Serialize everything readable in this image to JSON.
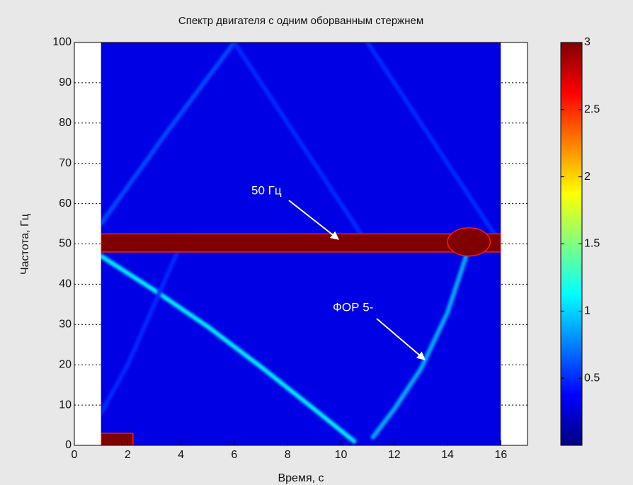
{
  "chart_data": {
    "type": "heatmap",
    "title": "Спектр двигателя с одним оборванным стержнем",
    "xlabel": "Время, с",
    "ylabel": "Частота, Гц",
    "xlim": [
      0,
      17
    ],
    "xticks": [
      0,
      2,
      4,
      6,
      8,
      10,
      12,
      14,
      16
    ],
    "ylim": [
      0,
      100
    ],
    "yticks": [
      0,
      10,
      20,
      30,
      40,
      50,
      60,
      70,
      80,
      90,
      100
    ],
    "image_x": [
      1,
      16
    ],
    "image_y": [
      0,
      100
    ],
    "colormap": "jet",
    "clim": [
      0,
      3
    ],
    "cticks": [
      0.5,
      1,
      1.5,
      2,
      2.5,
      3
    ],
    "background": 0.3,
    "regions": [
      {
        "x": [
          1,
          16
        ],
        "y": [
          48,
          52.5
        ],
        "value": 3
      },
      {
        "x": [
          1,
          2.2
        ],
        "y": [
          0,
          3
        ],
        "value": 3
      },
      {
        "x": [
          14,
          15.6
        ],
        "y": [
          47,
          54
        ],
        "value": 3
      }
    ],
    "curves": [
      {
        "x": [
          1,
          3,
          5,
          7,
          9,
          10.5
        ],
        "y": [
          47,
          38.5,
          29.5,
          19.5,
          9,
          1
        ],
        "value": 1.1
      },
      {
        "x": [
          11.2,
          12,
          13,
          14,
          14.7
        ],
        "y": [
          2,
          9,
          19,
          33,
          47
        ],
        "value": 0.9
      },
      {
        "x": [
          1,
          3.5,
          6
        ],
        "y": [
          55,
          78,
          100
        ],
        "value": 0.6
      },
      {
        "x": [
          6,
          8.5,
          11
        ],
        "y": [
          100,
          75,
          50
        ],
        "value": 0.5
      },
      {
        "x": [
          11,
          13.5,
          16
        ],
        "y": [
          100,
          75,
          50
        ],
        "value": 0.5
      },
      {
        "x": [
          1,
          2,
          4
        ],
        "y": [
          8,
          20,
          50
        ],
        "value": 0.5
      }
    ],
    "annotations": [
      "50 Гц",
      "ФОР 5-"
    ]
  }
}
